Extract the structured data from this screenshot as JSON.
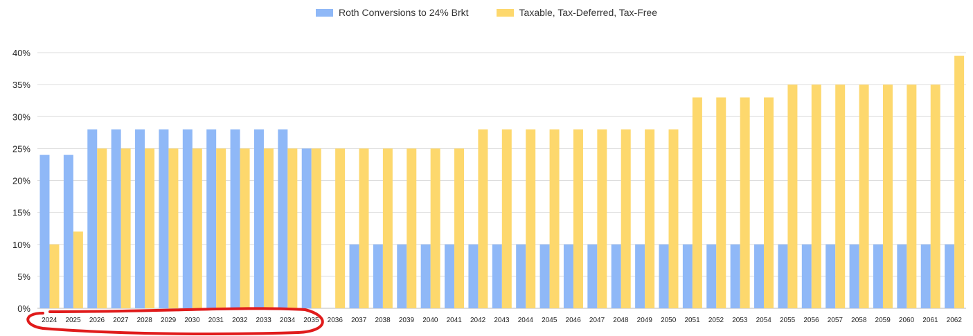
{
  "chart_data": {
    "type": "bar",
    "categories": [
      "2024",
      "2025",
      "2026",
      "2027",
      "2028",
      "2029",
      "2030",
      "2031",
      "2032",
      "2033",
      "2034",
      "2035",
      "2036",
      "2037",
      "2038",
      "2039",
      "2040",
      "2041",
      "2042",
      "2043",
      "2044",
      "2045",
      "2046",
      "2047",
      "2048",
      "2049",
      "2050",
      "2051",
      "2052",
      "2053",
      "2054",
      "2055",
      "2056",
      "2057",
      "2058",
      "2059",
      "2060",
      "2061",
      "2062"
    ],
    "series": [
      {
        "name": "Roth Conversions to 24% Brkt",
        "color": "#8fb8f7",
        "values": [
          24,
          24,
          28,
          28,
          28,
          28,
          28,
          28,
          28,
          28,
          28,
          25,
          0,
          10,
          10,
          10,
          10,
          10,
          10,
          10,
          10,
          10,
          10,
          10,
          10,
          10,
          10,
          10,
          10,
          10,
          10,
          10,
          10,
          10,
          10,
          10,
          10,
          10,
          10
        ]
      },
      {
        "name": "Taxable, Tax-Deferred, Tax-Free",
        "color": "#fdd86d",
        "values": [
          10,
          12,
          25,
          25,
          25,
          25,
          25,
          25,
          25,
          25,
          25,
          25,
          25,
          25,
          25,
          25,
          25,
          25,
          28,
          28,
          28,
          28,
          28,
          28,
          28,
          28,
          28,
          33,
          33,
          33,
          33,
          35,
          35,
          35,
          35,
          35,
          35,
          35,
          39.5
        ]
      }
    ],
    "yticks": [
      "0%",
      "5%",
      "10%",
      "15%",
      "20%",
      "25%",
      "30%",
      "35%",
      "40%"
    ],
    "ylim": [
      0,
      40
    ],
    "ytick_step": 5,
    "grid": true,
    "legend_position": "top-center",
    "annotation": {
      "shape": "red hand-drawn ellipse",
      "color": "#e01b1b",
      "covers_categories": [
        "2024",
        "2035"
      ]
    }
  }
}
